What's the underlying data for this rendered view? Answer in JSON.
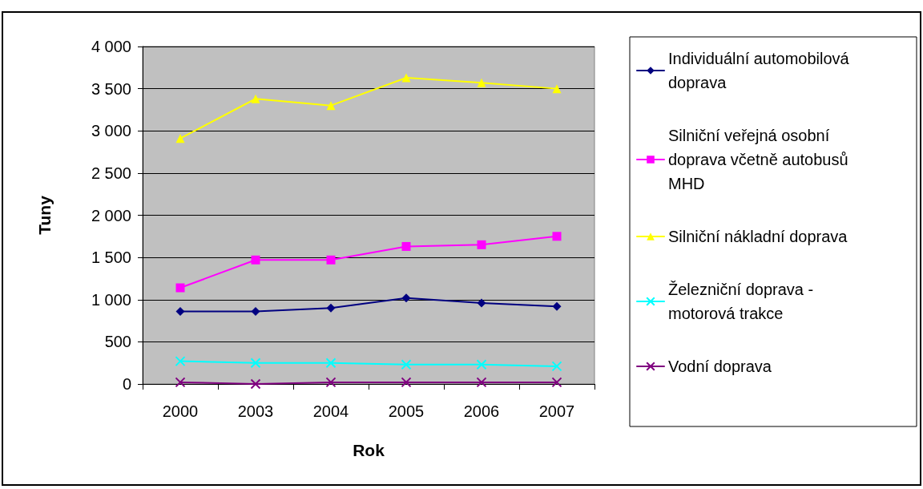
{
  "chart_data": {
    "type": "line",
    "xlabel": "Rok",
    "ylabel": "Tuny",
    "categories": [
      "2000",
      "2003",
      "2004",
      "2005",
      "2006",
      "2007"
    ],
    "series": [
      {
        "name": "Individuální automobilová doprava",
        "color": "#000080",
        "marker": "diamond",
        "values": [
          860,
          860,
          900,
          1020,
          960,
          920
        ]
      },
      {
        "name": "Silniční veřejná osobní doprava včetně autobusů MHD",
        "color": "#ff00ff",
        "marker": "square",
        "values": [
          1140,
          1470,
          1470,
          1630,
          1650,
          1750
        ]
      },
      {
        "name": "Silniční nákladní doprava",
        "color": "#ffff00",
        "marker": "triangle",
        "values": [
          2910,
          3380,
          3300,
          3630,
          3570,
          3500
        ]
      },
      {
        "name": "Železniční doprava - motorová trakce",
        "color": "#00ffff",
        "marker": "cross",
        "values": [
          270,
          250,
          250,
          230,
          230,
          210
        ]
      },
      {
        "name": "Vodní doprava",
        "color": "#800080",
        "marker": "cross",
        "values": [
          20,
          0,
          20,
          20,
          20,
          20
        ]
      }
    ],
    "ylim": [
      0,
      4000
    ],
    "yticks": [
      0,
      500,
      {
        "value": 1000,
        "label": "1 000"
      },
      {
        "value": 1500,
        "label": "1 500"
      },
      {
        "value": 2000,
        "label": "2 000"
      },
      {
        "value": 2500,
        "label": "2 500"
      },
      {
        "value": 3000,
        "label": "3 000"
      },
      {
        "value": 3500,
        "label": "3 500"
      },
      {
        "value": 4000,
        "label": "4 000"
      }
    ],
    "grid": "y",
    "legend": "right",
    "line_style": "solid"
  }
}
